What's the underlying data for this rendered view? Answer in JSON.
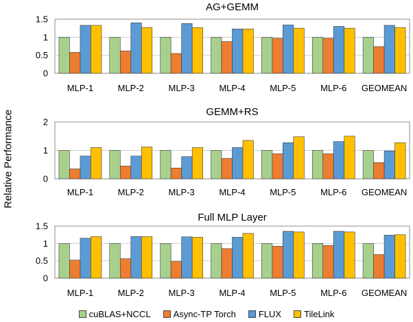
{
  "figure": {
    "ylabel": "Relative Performance"
  },
  "legend_position": "bottom",
  "series_colors": [
    "#a8d08d",
    "#ed7d31",
    "#5b9bd5",
    "#ffc000"
  ],
  "legend": [
    {
      "name": "cuBLAS+NCCL",
      "color": "#a8d08d"
    },
    {
      "name": "Async-TP Torch",
      "color": "#ed7d31"
    },
    {
      "name": "FLUX",
      "color": "#5b9bd5"
    },
    {
      "name": "TileLink",
      "color": "#ffc000"
    }
  ],
  "chart_data": [
    {
      "type": "bar",
      "title": "AG+GEMM",
      "categories": [
        "MLP-1",
        "MLP-2",
        "MLP-3",
        "MLP-4",
        "MLP-5",
        "MLP-6",
        "GEOMEAN"
      ],
      "ylim": [
        0,
        1.5
      ],
      "yticks": [
        "0",
        "0.5",
        "1",
        "1.5"
      ],
      "ytick_values": [
        0,
        0.5,
        1,
        1.5
      ],
      "grid": true,
      "series": [
        {
          "name": "cuBLAS+NCCL",
          "values": [
            1.0,
            1.0,
            1.0,
            1.0,
            1.0,
            1.0,
            1.0
          ]
        },
        {
          "name": "Async-TP Torch",
          "values": [
            0.58,
            0.62,
            0.55,
            0.88,
            0.97,
            0.97,
            0.74
          ]
        },
        {
          "name": "FLUX",
          "values": [
            1.33,
            1.4,
            1.38,
            1.23,
            1.34,
            1.3,
            1.33
          ]
        },
        {
          "name": "TileLink",
          "values": [
            1.33,
            1.27,
            1.27,
            1.23,
            1.25,
            1.25,
            1.27
          ]
        }
      ]
    },
    {
      "type": "bar",
      "title": "GEMM+RS",
      "categories": [
        "MLP-1",
        "MLP-2",
        "MLP-3",
        "MLP-4",
        "MLP-5",
        "MLP-6",
        "GEOMEAN"
      ],
      "ylim": [
        0,
        2
      ],
      "yticks": [
        "0",
        "1",
        "2"
      ],
      "ytick_values": [
        0,
        1,
        2
      ],
      "grid": true,
      "series": [
        {
          "name": "cuBLAS+NCCL",
          "values": [
            1.0,
            1.0,
            1.0,
            1.0,
            1.0,
            1.0,
            1.0
          ]
        },
        {
          "name": "Async-TP Torch",
          "values": [
            0.35,
            0.45,
            0.38,
            0.72,
            0.88,
            0.88,
            0.57
          ]
        },
        {
          "name": "FLUX",
          "values": [
            0.8,
            0.8,
            0.78,
            1.1,
            1.27,
            1.31,
            0.98
          ]
        },
        {
          "name": "TileLink",
          "values": [
            1.1,
            1.12,
            1.1,
            1.35,
            1.48,
            1.5,
            1.27
          ]
        }
      ]
    },
    {
      "type": "bar",
      "title": "Full MLP Layer",
      "categories": [
        "MLP-1",
        "MLP-2",
        "MLP-3",
        "MLP-4",
        "MLP-5",
        "MLP-6",
        "GEOMEAN"
      ],
      "ylim": [
        0,
        1.5
      ],
      "yticks": [
        "0",
        "0.5",
        "1",
        "1.5"
      ],
      "ytick_values": [
        0,
        0.5,
        1,
        1.5
      ],
      "grid": true,
      "series": [
        {
          "name": "cuBLAS+NCCL",
          "values": [
            1.0,
            1.0,
            1.0,
            1.0,
            1.0,
            1.0,
            1.0
          ]
        },
        {
          "name": "Async-TP Torch",
          "values": [
            0.52,
            0.56,
            0.48,
            0.85,
            0.92,
            0.94,
            0.68
          ]
        },
        {
          "name": "FLUX",
          "values": [
            1.15,
            1.2,
            1.19,
            1.18,
            1.35,
            1.35,
            1.24
          ]
        },
        {
          "name": "TileLink",
          "values": [
            1.2,
            1.2,
            1.18,
            1.29,
            1.33,
            1.33,
            1.25
          ]
        }
      ]
    }
  ]
}
